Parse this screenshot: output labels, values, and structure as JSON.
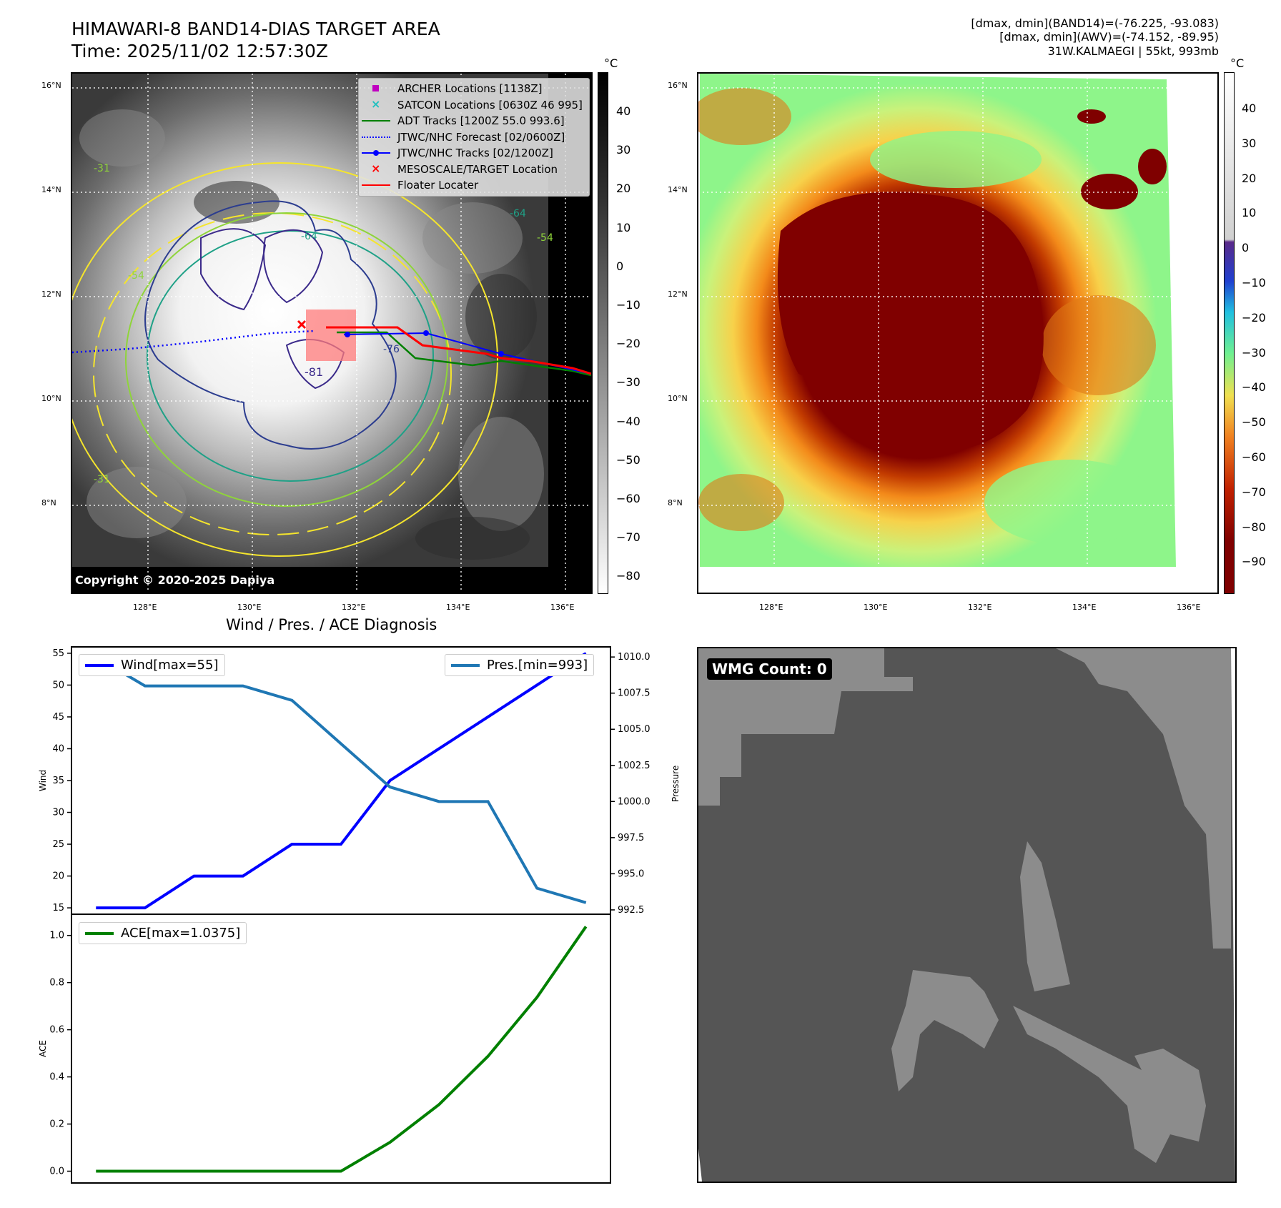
{
  "header": {
    "title_line1": "HIMAWARI-8 BAND14-DIAS TARGET AREA",
    "title_line2": "Time: 2025/11/02 12:57:30Z",
    "info_line1": "[dmax, dmin](BAND14)=(-76.225, -93.083)",
    "info_line2": "[dmax, dmin](AWV)=(-74.152, -89.95)",
    "info_line3": "31W.KALMAEGI | 55kt, 993mb"
  },
  "map_axes": {
    "lat_labels": [
      "16°N",
      "14°N",
      "12°N",
      "10°N",
      "8°N"
    ],
    "lon_labels": [
      "128°E",
      "130°E",
      "132°E",
      "134°E",
      "136°E"
    ]
  },
  "ir_panel": {
    "legend": [
      {
        "label": "ARCHER Locations [1138Z]",
        "color": "#c000c0",
        "marker": "square"
      },
      {
        "label": "SATCON Locations [0630Z 46 995]",
        "color": "#20c0c0",
        "marker": "x"
      },
      {
        "label": "ADT Tracks [1200Z 55.0 993.6]",
        "color": "#008000",
        "marker": "line"
      },
      {
        "label": "JTWC/NHC Forecast [02/0600Z]",
        "color": "#0000ff",
        "marker": "dotted"
      },
      {
        "label": "JTWC/NHC Tracks [02/1200Z]",
        "color": "#0000ff",
        "marker": "line-dot"
      },
      {
        "label": "MESOSCALE/TARGET Location",
        "color": "#ff0000",
        "marker": "x"
      },
      {
        "label": "Floater Locater",
        "color": "#ff0000",
        "marker": "line"
      }
    ],
    "contour_labels": [
      "-31",
      "-54",
      "-64",
      "-76",
      "-81",
      "-64",
      "-54",
      "-31"
    ],
    "copyright": "Copyright © 2020-2025 Dapiya",
    "colorbar_unit": "°C",
    "colorbar_ticks": [
      "40",
      "30",
      "20",
      "10",
      "0",
      "−10",
      "−20",
      "−30",
      "−40",
      "−50",
      "−60",
      "−70",
      "−80"
    ]
  },
  "awv_panel": {
    "colorbar_unit": "°C",
    "colorbar_ticks": [
      "40",
      "30",
      "20",
      "10",
      "0",
      "−10",
      "−20",
      "−30",
      "−40",
      "−50",
      "−60",
      "−70",
      "−80",
      "−90"
    ]
  },
  "chart_data": [
    {
      "type": "line",
      "title": "Wind / Pres. / ACE Diagnosis",
      "x": [
        0,
        1,
        2,
        3,
        4,
        5,
        6,
        7,
        8,
        9,
        10
      ],
      "series": [
        {
          "name": "Wind[max=55]",
          "axis": "left",
          "color": "#0000ff",
          "values": [
            15,
            15,
            20,
            20,
            25,
            25,
            35,
            40,
            45,
            50,
            55
          ]
        },
        {
          "name": "Pres.[min=993]",
          "axis": "right",
          "color": "#1f77b4",
          "values": [
            1010,
            1008,
            1008,
            1008,
            1007,
            1004,
            1001,
            1000,
            1000,
            994,
            993
          ]
        }
      ],
      "ylabel": "Wind",
      "ylim": [
        14,
        56
      ],
      "yticks": [
        15,
        20,
        25,
        30,
        35,
        40,
        45,
        50,
        55
      ],
      "y2label": "Pressure",
      "y2lim": [
        992.2,
        1010.7
      ],
      "y2ticks": [
        "992.5",
        "995.0",
        "997.5",
        "1000.0",
        "1002.5",
        "1005.0",
        "1007.5",
        "1010.0"
      ],
      "legend": "top-left / top-right"
    },
    {
      "type": "line",
      "x": [
        0,
        1,
        2,
        3,
        4,
        5,
        6,
        7,
        8,
        9,
        10
      ],
      "series": [
        {
          "name": "ACE[max=1.0375]",
          "color": "#008000",
          "values": [
            0,
            0,
            0,
            0,
            0,
            0,
            0.1225,
            0.2825,
            0.4875,
            0.7375,
            1.0375
          ]
        }
      ],
      "ylabel": "ACE",
      "ylim": [
        -0.05,
        1.09
      ],
      "yticks": [
        "0.0",
        "0.2",
        "0.4",
        "0.6",
        "0.8",
        "1.0"
      ],
      "legend": "top-left"
    }
  ],
  "wmg_panel": {
    "label": "WMG Count: 0"
  }
}
